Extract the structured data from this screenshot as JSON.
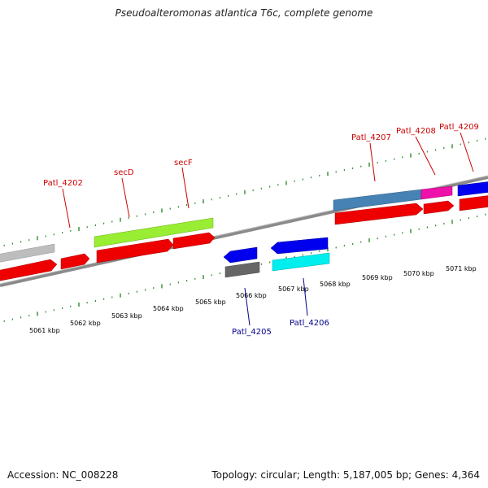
{
  "title": "Pseudoalteromonas atlantica T6c, complete genome",
  "accession": "Accession: NC_008228",
  "summary": "Topology: circular; Length: 5,187,005 bp; Genes: 4,364",
  "colors": {
    "backbone": "#808080",
    "tick": "#2e8b2e",
    "forward_label": "#cc0000",
    "reverse_label": "#00008b",
    "cds": "#ee0000",
    "lime": "#99ee33",
    "steelblue": "#4682b4",
    "magenta": "#ee11aa",
    "blue": "#0000ee",
    "cyan": "#00eeee",
    "gray_gene": "#666666",
    "lightgray_gene": "#bbbbbb"
  },
  "scale_labels": [
    "5061 kbp",
    "5062 kbp",
    "5063 kbp",
    "5064 kbp",
    "5065 kbp",
    "5066 kbp",
    "5067 kbp",
    "5068 kbp",
    "5069 kbp",
    "5070 kbp",
    "5071 kbp"
  ],
  "gene_labels": {
    "patl_4202": "Patl_4202",
    "secD": "secD",
    "secF": "secF",
    "patl_4207": "Patl_4207",
    "patl_4208": "Patl_4208",
    "patl_4209": "Patl_4209",
    "patl_4205": "Patl_4205",
    "patl_4206": "Patl_4206"
  }
}
